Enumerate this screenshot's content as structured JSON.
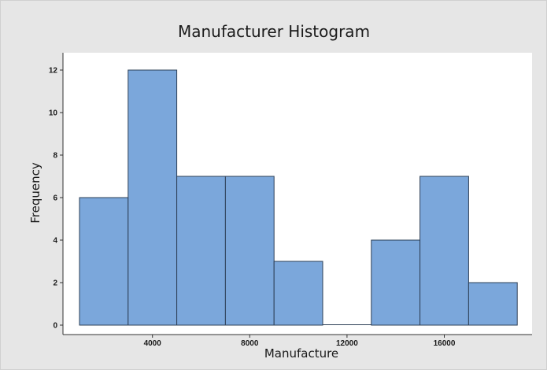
{
  "chart_data": {
    "type": "bar",
    "title": "Manufacturer Histogram",
    "xlabel": "Manufacture",
    "ylabel": "Frequency",
    "bin_width": 2000,
    "bins": [
      {
        "start": 1000,
        "end": 3000,
        "count": 6
      },
      {
        "start": 3000,
        "end": 5000,
        "count": 12
      },
      {
        "start": 5000,
        "end": 7000,
        "count": 7
      },
      {
        "start": 7000,
        "end": 9000,
        "count": 7
      },
      {
        "start": 9000,
        "end": 11000,
        "count": 3
      },
      {
        "start": 11000,
        "end": 13000,
        "count": 0
      },
      {
        "start": 13000,
        "end": 15000,
        "count": 4
      },
      {
        "start": 15000,
        "end": 17000,
        "count": 7
      },
      {
        "start": 17000,
        "end": 19000,
        "count": 2
      }
    ],
    "xlim": [
      0,
      19000
    ],
    "ylim": [
      0,
      12.7
    ],
    "x_ticks": [
      4000,
      8000,
      12000,
      16000
    ],
    "y_ticks": [
      0,
      2,
      4,
      6,
      8,
      10,
      12
    ],
    "grid": false,
    "legend": "none",
    "colors": {
      "bar_fill": "#7ba7db",
      "bar_stroke": "#2e4057",
      "plot_background": "#ffffff",
      "figure_background": "#e6e6e6"
    }
  }
}
